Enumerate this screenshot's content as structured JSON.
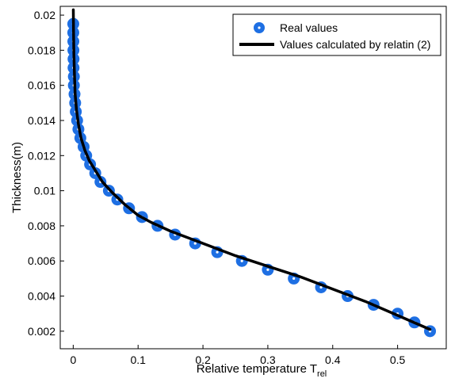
{
  "chart_data": {
    "type": "scatter",
    "title": "",
    "xlabel": "Relative temperature T",
    "xlabel_subscript": "rel",
    "ylabel": "Thickness(m)",
    "xlim": [
      -0.02,
      0.575
    ],
    "ylim": [
      0.001,
      0.0205
    ],
    "xticks": [
      0,
      0.1,
      0.2,
      0.3,
      0.4,
      0.5
    ],
    "xtick_labels": [
      "0",
      "0.1",
      "0.2",
      "0.3",
      "0.4",
      "0.5"
    ],
    "yticks": [
      0.002,
      0.004,
      0.006,
      0.008,
      0.01,
      0.012,
      0.014,
      0.016,
      0.018,
      0.02
    ],
    "ytick_labels": [
      "0.002",
      "0.004",
      "0.006",
      "0.008",
      "0.01",
      "0.012",
      "0.014",
      "0.016",
      "0.018",
      "0.02"
    ],
    "grid": false,
    "legend_position": "top-right",
    "series": [
      {
        "name": "Real values",
        "kind": "markers",
        "color": "#1e6fe3",
        "points": [
          [
            0.55,
            0.002
          ],
          [
            0.526,
            0.0025
          ],
          [
            0.5,
            0.003
          ],
          [
            0.463,
            0.0035
          ],
          [
            0.423,
            0.004
          ],
          [
            0.382,
            0.0045
          ],
          [
            0.34,
            0.005
          ],
          [
            0.3,
            0.0055
          ],
          [
            0.26,
            0.006
          ],
          [
            0.222,
            0.0065
          ],
          [
            0.188,
            0.007
          ],
          [
            0.157,
            0.0075
          ],
          [
            0.13,
            0.008
          ],
          [
            0.106,
            0.0085
          ],
          [
            0.086,
            0.009
          ],
          [
            0.068,
            0.0095
          ],
          [
            0.055,
            0.01
          ],
          [
            0.042,
            0.0105
          ],
          [
            0.034,
            0.011
          ],
          [
            0.026,
            0.0115
          ],
          [
            0.02,
            0.012
          ],
          [
            0.016,
            0.0125
          ],
          [
            0.011,
            0.013
          ],
          [
            0.008,
            0.0135
          ],
          [
            0.006,
            0.014
          ],
          [
            0.004,
            0.0145
          ],
          [
            0.003,
            0.015
          ],
          [
            0.002,
            0.0155
          ],
          [
            0.001,
            0.016
          ],
          [
            0.001,
            0.0165
          ],
          [
            0.0005,
            0.017
          ],
          [
            0.0005,
            0.0175
          ],
          [
            0.0003,
            0.018
          ],
          [
            0.0002,
            0.0185
          ],
          [
            0.0001,
            0.019
          ],
          [
            0.0001,
            0.0195
          ]
        ]
      },
      {
        "name": "Values calculated by relatin (2)",
        "kind": "line",
        "color": "#000000",
        "points": [
          [
            0.55,
            0.0021
          ],
          [
            0.5,
            0.0029
          ],
          [
            0.45,
            0.0037
          ],
          [
            0.4,
            0.0044
          ],
          [
            0.35,
            0.0051
          ],
          [
            0.3,
            0.0057
          ],
          [
            0.25,
            0.0063
          ],
          [
            0.2,
            0.007
          ],
          [
            0.15,
            0.0077
          ],
          [
            0.12,
            0.0082
          ],
          [
            0.1,
            0.0086
          ],
          [
            0.08,
            0.0092
          ],
          [
            0.06,
            0.0099
          ],
          [
            0.045,
            0.0105
          ],
          [
            0.035,
            0.0111
          ],
          [
            0.025,
            0.0117
          ],
          [
            0.018,
            0.0123
          ],
          [
            0.012,
            0.013
          ],
          [
            0.008,
            0.0138
          ],
          [
            0.005,
            0.0146
          ],
          [
            0.003,
            0.0155
          ],
          [
            0.002,
            0.0165
          ],
          [
            0.001,
            0.0178
          ],
          [
            0.0005,
            0.019
          ],
          [
            0.0002,
            0.0203
          ]
        ]
      }
    ]
  }
}
